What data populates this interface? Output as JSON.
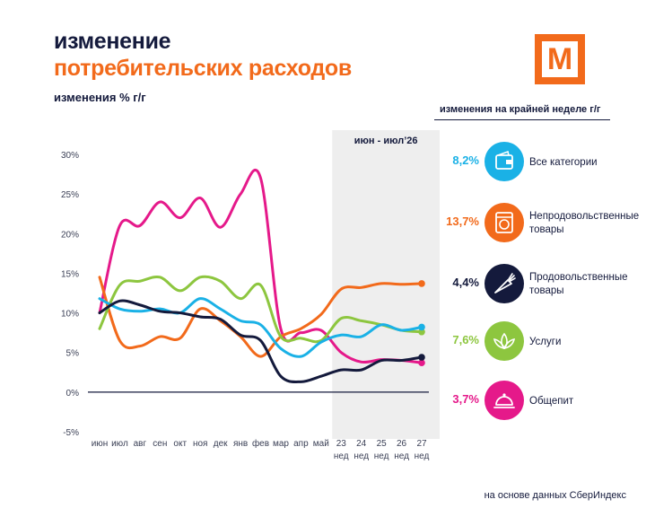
{
  "header": {
    "title_line1": "изменение",
    "title_line2": "потребительских расходов",
    "subtitle": "изменения % г/г",
    "logo_letter": "М"
  },
  "highlight_label": "июн - июл’26",
  "legend": {
    "header": "изменения на крайней неделе г/г",
    "items": [
      {
        "value": "8,2%",
        "label_line1": "Все категории",
        "label_line2": "",
        "color": "#1ab1e6",
        "icon": "wallet-icon"
      },
      {
        "value": "13,7%",
        "label_line1": "Непродовольственные",
        "label_line2": "товары",
        "color": "#f26a1b",
        "icon": "washing-machine-icon"
      },
      {
        "value": "4,4%",
        "label_line1": "Продовольственные",
        "label_line2": "товары",
        "color": "#141a3c",
        "icon": "carrot-icon"
      },
      {
        "value": "7,6%",
        "label_line1": "Услуги",
        "label_line2": "",
        "color": "#8dc63f",
        "icon": "lotus-icon"
      },
      {
        "value": "3,7%",
        "label_line1": "Общепит",
        "label_line2": "",
        "color": "#e5198a",
        "icon": "cloche-icon"
      }
    ]
  },
  "footer": "на основе данных СберИндекс",
  "chart_data": {
    "type": "line",
    "x_top": [
      "июн",
      "июл",
      "авг",
      "сен",
      "окт",
      "ноя",
      "дек",
      "янв",
      "фев",
      "мар",
      "апр",
      "май",
      "23",
      "24",
      "25",
      "26",
      "27"
    ],
    "x_bottom": [
      "",
      "",
      "",
      "",
      "",
      "",
      "",
      "",
      "",
      "",
      "",
      "",
      "нед",
      "нед",
      "нед",
      "нед",
      "нед"
    ],
    "y_ticks": [
      "30%",
      "25%",
      "20%",
      "15%",
      "10%",
      "5%",
      "0%",
      "-5%"
    ],
    "y_tick_values": [
      30,
      25,
      20,
      15,
      10,
      5,
      0,
      -5
    ],
    "ylim": [
      -5,
      30
    ],
    "grid": false,
    "zero_line": true,
    "highlight_from_index": 12,
    "series": [
      {
        "name": "Общепит",
        "color": "#e5198a",
        "values": [
          10,
          21,
          21,
          24,
          22,
          24.5,
          20.8,
          25,
          27,
          8,
          7.5,
          7.8,
          5,
          3.8,
          4.1,
          4,
          3.7
        ]
      },
      {
        "name": "Непродовольственные товары",
        "color": "#f26a1b",
        "values": [
          14.5,
          6.5,
          5.8,
          7,
          6.8,
          10.5,
          9,
          7,
          4.5,
          7,
          8,
          9.8,
          13,
          13.2,
          13.7,
          13.6,
          13.7
        ]
      },
      {
        "name": "Услуги",
        "color": "#8dc63f",
        "values": [
          8,
          13.5,
          14,
          14.5,
          12.8,
          14.5,
          14,
          11.8,
          13.5,
          7,
          6.8,
          6.5,
          9.3,
          9,
          8.5,
          7.8,
          7.6
        ]
      },
      {
        "name": "Все категории",
        "color": "#1ab1e6",
        "values": [
          11.8,
          10.5,
          10.2,
          10.5,
          10,
          11.8,
          10.5,
          9,
          8.5,
          5.5,
          4.5,
          6.3,
          7.2,
          7,
          8.5,
          7.8,
          8.2
        ]
      },
      {
        "name": "Продовольственные товары",
        "color": "#141a3c",
        "values": [
          10,
          11.5,
          11,
          10.2,
          10,
          9.5,
          9.2,
          7.2,
          6.5,
          2,
          1.3,
          2,
          2.8,
          2.8,
          4,
          4,
          4.4
        ]
      }
    ],
    "end_markers": true
  }
}
